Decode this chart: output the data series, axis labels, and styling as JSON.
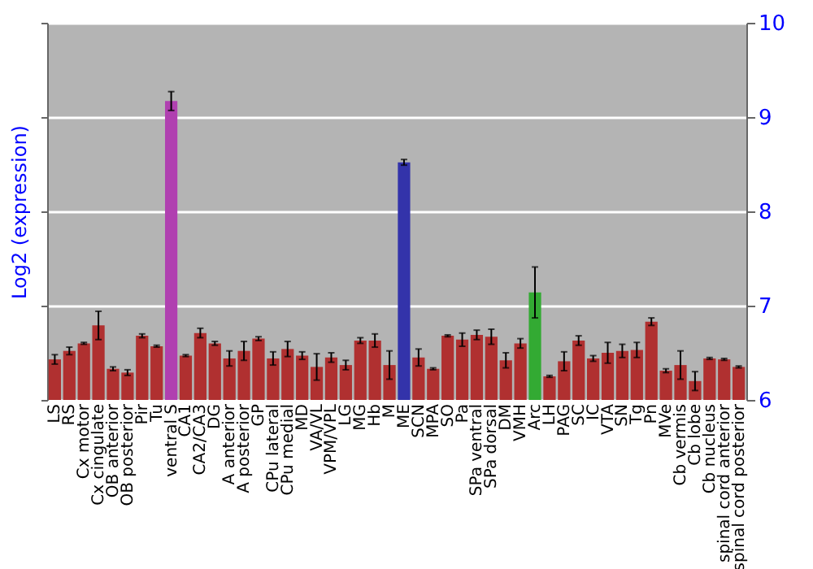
{
  "chart_data": {
    "type": "bar",
    "ylabel": "Log2 (expression)",
    "categories": [
      "LS",
      "RS",
      "Cx motor",
      "Cx cingulate",
      "OB anterior",
      "OB posterior",
      "Pir",
      "Tu",
      "ventral S",
      "CA1",
      "CA2/CA3",
      "DG",
      "A anterior",
      "A posterior",
      "GP",
      "CPu lateral",
      "CPu medial",
      "MD",
      "VA/VL",
      "VPM/VPL",
      "LG",
      "MG",
      "Hb",
      "M",
      "ME",
      "SCN",
      "MPA",
      "SO",
      "Pa",
      "SPa ventral",
      "SPa dorsal",
      "DM",
      "VMH",
      "Arc",
      "LH",
      "PAG",
      "SC",
      "IC",
      "VTA",
      "SN",
      "Tg",
      "Pn",
      "MVe",
      "Cb vermis",
      "Cb lobe",
      "Cb nucleus",
      "spinal cord anterior",
      "spinal cord posterior"
    ],
    "values": [
      6.43,
      6.52,
      6.6,
      6.79,
      6.33,
      6.29,
      6.68,
      6.57,
      9.17,
      6.47,
      6.71,
      6.6,
      6.44,
      6.52,
      6.65,
      6.44,
      6.54,
      6.47,
      6.35,
      6.45,
      6.37,
      6.63,
      6.63,
      6.37,
      8.52,
      6.45,
      6.33,
      6.68,
      6.64,
      6.69,
      6.67,
      6.42,
      6.6,
      7.14,
      6.25,
      6.41,
      6.63,
      6.44,
      6.5,
      6.52,
      6.53,
      6.83,
      6.31,
      6.37,
      6.2,
      6.44,
      6.43,
      6.35
    ],
    "errors": [
      0.05,
      0.04,
      0.01,
      0.15,
      0.02,
      0.03,
      0.02,
      0.01,
      0.1,
      0.01,
      0.05,
      0.02,
      0.08,
      0.1,
      0.02,
      0.07,
      0.08,
      0.04,
      0.14,
      0.05,
      0.05,
      0.03,
      0.07,
      0.15,
      0.03,
      0.09,
      0.01,
      0.01,
      0.07,
      0.05,
      0.08,
      0.08,
      0.05,
      0.27,
      0.01,
      0.1,
      0.05,
      0.03,
      0.11,
      0.07,
      0.08,
      0.04,
      0.02,
      0.15,
      0.1,
      0.01,
      0.01,
      0.01
    ],
    "colors": [
      "#b03030",
      "#b03030",
      "#b03030",
      "#b03030",
      "#b03030",
      "#b03030",
      "#b03030",
      "#b03030",
      "#b040b0",
      "#b03030",
      "#b03030",
      "#b03030",
      "#b03030",
      "#b03030",
      "#b03030",
      "#b03030",
      "#b03030",
      "#b03030",
      "#b03030",
      "#b03030",
      "#b03030",
      "#b03030",
      "#b03030",
      "#b03030",
      "#3333aa",
      "#b03030",
      "#b03030",
      "#b03030",
      "#b03030",
      "#b03030",
      "#b03030",
      "#b03030",
      "#b03030",
      "#33aa33",
      "#b03030",
      "#b03030",
      "#b03030",
      "#b03030",
      "#b03030",
      "#b03030",
      "#b03030",
      "#b03030",
      "#b03030",
      "#b03030",
      "#b03030",
      "#b03030",
      "#b03030",
      "#b03030"
    ],
    "ylim": [
      6,
      10
    ],
    "yticks": [
      6,
      7,
      8,
      9,
      10
    ],
    "grid": "y"
  }
}
